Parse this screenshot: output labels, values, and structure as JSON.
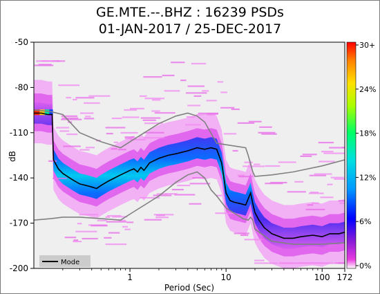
{
  "chart_data": {
    "type": "heatmap",
    "title": "GE.MTE.--.BHZ : 16239 PSDs",
    "subtitle": "01-JAN-2017 / 25-DEC-2017",
    "xlabel": "Period (Sec)",
    "ylabel": "dB",
    "x_scale": "log",
    "xlim": [
      0.1,
      172
    ],
    "ylim": [
      -200,
      -50
    ],
    "x_ticks": [
      {
        "v": 1,
        "label": "1"
      },
      {
        "v": 10,
        "label": "10"
      },
      {
        "v": 100,
        "label": "100"
      },
      {
        "v": 172,
        "label": "172"
      }
    ],
    "y_ticks": [
      -50,
      -80,
      -110,
      -140,
      -170,
      -200
    ],
    "colorbar_ticks": [
      "30+",
      "24%",
      "18%",
      "12%",
      "6%",
      "0%"
    ],
    "colorbar_range": [
      0,
      30
    ],
    "legend": {
      "position": "bottom-left",
      "entries": [
        "Mode"
      ]
    },
    "mode": {
      "name": "Mode",
      "x": [
        0.1,
        0.12,
        0.14,
        0.155,
        0.16,
        0.18,
        0.2,
        0.25,
        0.3,
        0.35,
        0.4,
        0.45,
        0.5,
        0.6,
        0.8,
        1.0,
        1.1,
        1.2,
        1.3,
        1.4,
        1.6,
        2,
        2.5,
        3,
        4,
        5,
        6,
        7,
        8,
        9,
        9.5,
        10,
        11,
        12,
        14,
        16,
        18,
        19,
        20,
        22,
        25,
        30,
        40,
        50,
        60,
        80,
        100,
        120,
        150,
        172
      ],
      "y": [
        -97,
        -97,
        -98,
        -98,
        -128,
        -134,
        -137,
        -141,
        -144,
        -145,
        -146,
        -147,
        -145,
        -142,
        -138,
        -135,
        -134,
        -136,
        -133,
        -135,
        -130,
        -127,
        -125,
        -124,
        -122,
        -120,
        -121,
        -120,
        -121,
        -130,
        -140,
        -150,
        -155,
        -156,
        -157,
        -158,
        -150,
        -157,
        -163,
        -168,
        -173,
        -177,
        -180,
        -180,
        -179,
        -178,
        -179,
        -177,
        -177,
        -176
      ]
    },
    "nhnm": {
      "x": [
        0.1,
        0.15,
        0.2,
        0.3,
        0.5,
        0.8,
        1,
        2,
        3,
        4,
        5,
        6,
        7,
        8,
        10,
        15,
        17,
        18,
        19,
        20,
        30,
        50,
        100,
        172
      ],
      "y": [
        -168,
        -167,
        -166,
        -166,
        -167,
        -168,
        -164,
        -152,
        -143,
        -138,
        -136,
        -140,
        -148,
        -152,
        -160,
        -167,
        -168,
        -166,
        -168,
        -174,
        -182,
        -184,
        -184,
        -183
      ]
    },
    "nlnm": {
      "x": [
        0.1,
        0.15,
        0.2,
        0.3,
        0.5,
        0.8,
        1,
        2,
        3,
        4,
        5,
        6,
        8,
        10,
        16,
        17,
        19,
        20,
        30,
        50,
        100,
        172
      ],
      "y": [
        -95,
        -96,
        -98,
        -110,
        -116,
        -120,
        -116,
        -104,
        -99,
        -97,
        -99,
        -103,
        -117,
        -118,
        -120,
        -125,
        -136,
        -139,
        -138,
        -136,
        -132,
        -128
      ]
    }
  }
}
